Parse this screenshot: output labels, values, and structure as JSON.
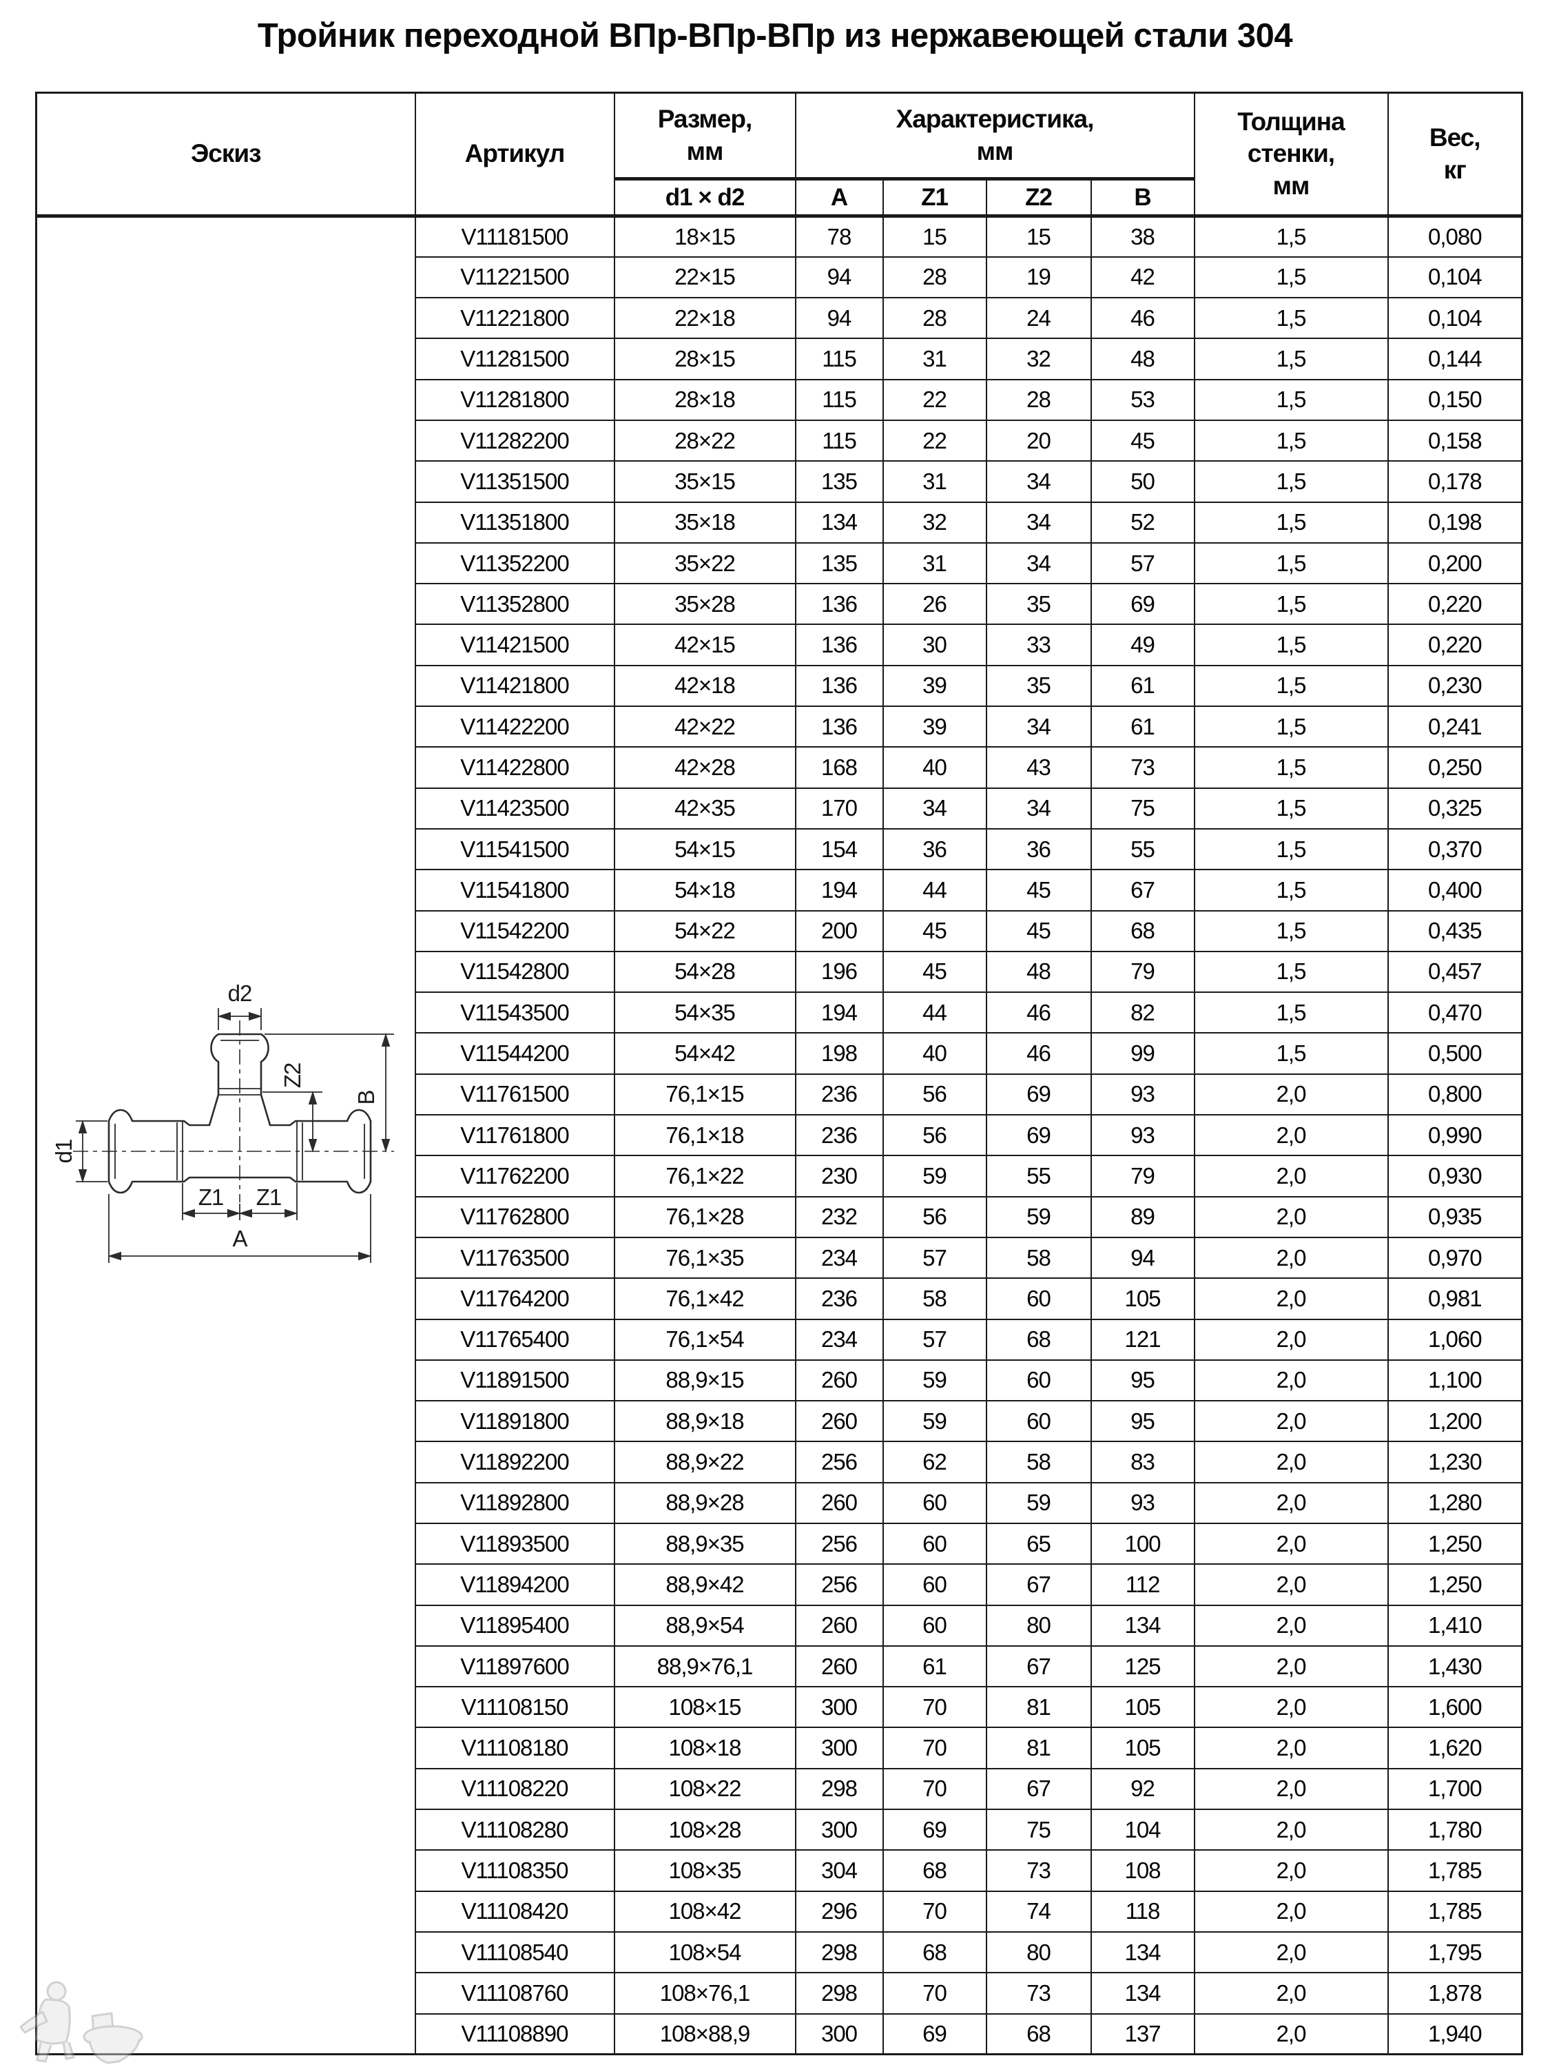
{
  "page": {
    "title": "Тройник переходной ВПр-ВПр-ВПр из нержавеющей стали 304"
  },
  "table": {
    "header": {
      "sketch": "Эскиз",
      "article": "Артикул",
      "size": "Размер,\nмм",
      "size_sub": "d1 × d2",
      "characteristics": "Характеристика,\nмм",
      "char_a": "A",
      "char_z1": "Z1",
      "char_z2": "Z2",
      "char_b": "B",
      "wall": "Толщина\nстенки,\nмм",
      "weight": "Вес,\nкг"
    },
    "columns": [
      "Артикул",
      "d1 × d2",
      "A",
      "Z1",
      "Z2",
      "B",
      "Толщина стенки, мм",
      "Вес, кг"
    ],
    "rows": [
      [
        "V11181500",
        "18×15",
        "78",
        "15",
        "15",
        "38",
        "1,5",
        "0,080"
      ],
      [
        "V11221500",
        "22×15",
        "94",
        "28",
        "19",
        "42",
        "1,5",
        "0,104"
      ],
      [
        "V11221800",
        "22×18",
        "94",
        "28",
        "24",
        "46",
        "1,5",
        "0,104"
      ],
      [
        "V11281500",
        "28×15",
        "115",
        "31",
        "32",
        "48",
        "1,5",
        "0,144"
      ],
      [
        "V11281800",
        "28×18",
        "115",
        "22",
        "28",
        "53",
        "1,5",
        "0,150"
      ],
      [
        "V11282200",
        "28×22",
        "115",
        "22",
        "20",
        "45",
        "1,5",
        "0,158"
      ],
      [
        "V11351500",
        "35×15",
        "135",
        "31",
        "34",
        "50",
        "1,5",
        "0,178"
      ],
      [
        "V11351800",
        "35×18",
        "134",
        "32",
        "34",
        "52",
        "1,5",
        "0,198"
      ],
      [
        "V11352200",
        "35×22",
        "135",
        "31",
        "34",
        "57",
        "1,5",
        "0,200"
      ],
      [
        "V11352800",
        "35×28",
        "136",
        "26",
        "35",
        "69",
        "1,5",
        "0,220"
      ],
      [
        "V11421500",
        "42×15",
        "136",
        "30",
        "33",
        "49",
        "1,5",
        "0,220"
      ],
      [
        "V11421800",
        "42×18",
        "136",
        "39",
        "35",
        "61",
        "1,5",
        "0,230"
      ],
      [
        "V11422200",
        "42×22",
        "136",
        "39",
        "34",
        "61",
        "1,5",
        "0,241"
      ],
      [
        "V11422800",
        "42×28",
        "168",
        "40",
        "43",
        "73",
        "1,5",
        "0,250"
      ],
      [
        "V11423500",
        "42×35",
        "170",
        "34",
        "34",
        "75",
        "1,5",
        "0,325"
      ],
      [
        "V11541500",
        "54×15",
        "154",
        "36",
        "36",
        "55",
        "1,5",
        "0,370"
      ],
      [
        "V11541800",
        "54×18",
        "194",
        "44",
        "45",
        "67",
        "1,5",
        "0,400"
      ],
      [
        "V11542200",
        "54×22",
        "200",
        "45",
        "45",
        "68",
        "1,5",
        "0,435"
      ],
      [
        "V11542800",
        "54×28",
        "196",
        "45",
        "48",
        "79",
        "1,5",
        "0,457"
      ],
      [
        "V11543500",
        "54×35",
        "194",
        "44",
        "46",
        "82",
        "1,5",
        "0,470"
      ],
      [
        "V11544200",
        "54×42",
        "198",
        "40",
        "46",
        "99",
        "1,5",
        "0,500"
      ],
      [
        "V11761500",
        "76,1×15",
        "236",
        "56",
        "69",
        "93",
        "2,0",
        "0,800"
      ],
      [
        "V11761800",
        "76,1×18",
        "236",
        "56",
        "69",
        "93",
        "2,0",
        "0,990"
      ],
      [
        "V11762200",
        "76,1×22",
        "230",
        "59",
        "55",
        "79",
        "2,0",
        "0,930"
      ],
      [
        "V11762800",
        "76,1×28",
        "232",
        "56",
        "59",
        "89",
        "2,0",
        "0,935"
      ],
      [
        "V11763500",
        "76,1×35",
        "234",
        "57",
        "58",
        "94",
        "2,0",
        "0,970"
      ],
      [
        "V11764200",
        "76,1×42",
        "236",
        "58",
        "60",
        "105",
        "2,0",
        "0,981"
      ],
      [
        "V11765400",
        "76,1×54",
        "234",
        "57",
        "68",
        "121",
        "2,0",
        "1,060"
      ],
      [
        "V11891500",
        "88,9×15",
        "260",
        "59",
        "60",
        "95",
        "2,0",
        "1,100"
      ],
      [
        "V11891800",
        "88,9×18",
        "260",
        "59",
        "60",
        "95",
        "2,0",
        "1,200"
      ],
      [
        "V11892200",
        "88,9×22",
        "256",
        "62",
        "58",
        "83",
        "2,0",
        "1,230"
      ],
      [
        "V11892800",
        "88,9×28",
        "260",
        "60",
        "59",
        "93",
        "2,0",
        "1,280"
      ],
      [
        "V11893500",
        "88,9×35",
        "256",
        "60",
        "65",
        "100",
        "2,0",
        "1,250"
      ],
      [
        "V11894200",
        "88,9×42",
        "256",
        "60",
        "67",
        "112",
        "2,0",
        "1,250"
      ],
      [
        "V11895400",
        "88,9×54",
        "260",
        "60",
        "80",
        "134",
        "2,0",
        "1,410"
      ],
      [
        "V11897600",
        "88,9×76,1",
        "260",
        "61",
        "67",
        "125",
        "2,0",
        "1,430"
      ],
      [
        "V11108150",
        "108×15",
        "300",
        "70",
        "81",
        "105",
        "2,0",
        "1,600"
      ],
      [
        "V11108180",
        "108×18",
        "300",
        "70",
        "81",
        "105",
        "2,0",
        "1,620"
      ],
      [
        "V11108220",
        "108×22",
        "298",
        "70",
        "67",
        "92",
        "2,0",
        "1,700"
      ],
      [
        "V11108280",
        "108×28",
        "300",
        "69",
        "75",
        "104",
        "2,0",
        "1,780"
      ],
      [
        "V11108350",
        "108×35",
        "304",
        "68",
        "73",
        "108",
        "2,0",
        "1,785"
      ],
      [
        "V11108420",
        "108×42",
        "296",
        "70",
        "74",
        "118",
        "2,0",
        "1,785"
      ],
      [
        "V11108540",
        "108×54",
        "298",
        "68",
        "80",
        "134",
        "2,0",
        "1,795"
      ],
      [
        "V11108760",
        "108×76,1",
        "298",
        "70",
        "73",
        "134",
        "2,0",
        "1,878"
      ],
      [
        "V11108890",
        "108×88,9",
        "300",
        "69",
        "68",
        "137",
        "2,0",
        "1,940"
      ]
    ]
  },
  "drawing": {
    "labels": {
      "d1": "d1",
      "d2": "d2",
      "z1": "Z1",
      "z2": "Z2",
      "a": "A",
      "b": "B"
    }
  },
  "colors": {
    "border": "#1a1a1a",
    "text": "#0a0a0a",
    "watermark": "#9a9a9a"
  }
}
